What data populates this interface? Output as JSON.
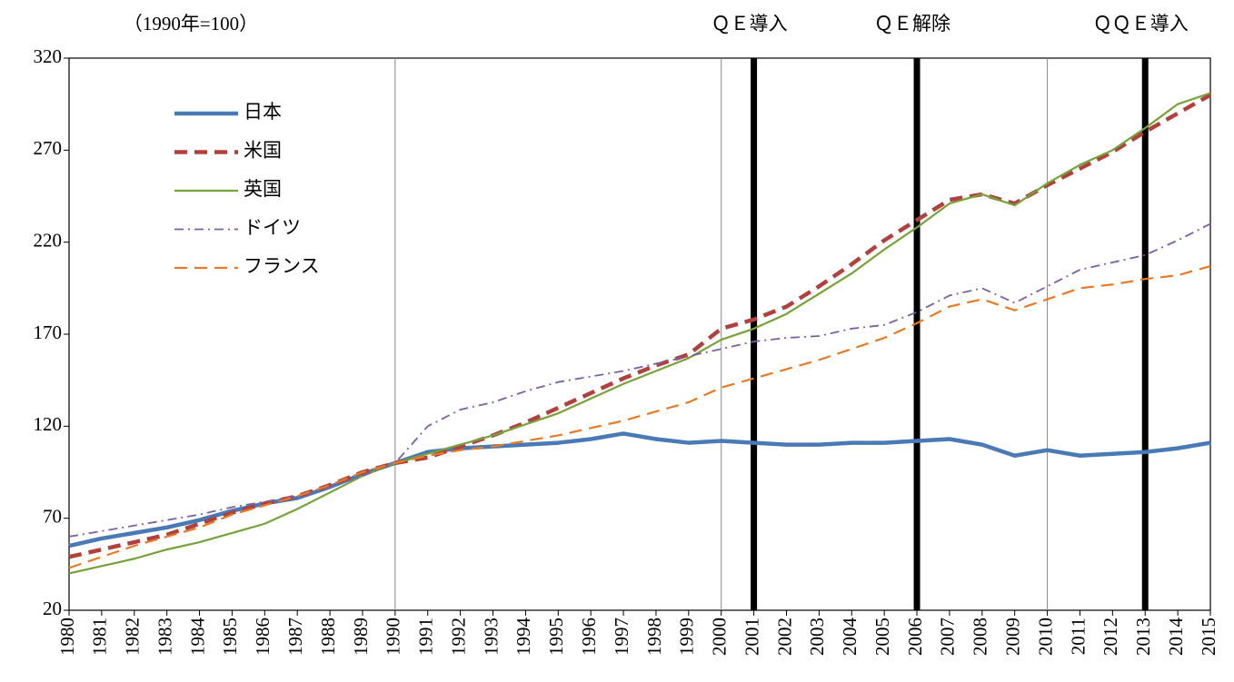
{
  "chart_data": {
    "type": "line",
    "y_label": "（1990年=100）",
    "x": [
      1980,
      1981,
      1982,
      1983,
      1984,
      1985,
      1986,
      1987,
      1988,
      1989,
      1990,
      1991,
      1992,
      1993,
      1994,
      1995,
      1996,
      1997,
      1998,
      1999,
      2000,
      2001,
      2002,
      2003,
      2004,
      2005,
      2006,
      2007,
      2008,
      2009,
      2010,
      2011,
      2012,
      2013,
      2014,
      2015
    ],
    "xlim": [
      1980,
      2015
    ],
    "ylim": [
      20,
      320
    ],
    "yticks": [
      20,
      70,
      120,
      170,
      220,
      270,
      320
    ],
    "x_gridlines": [
      1990,
      2000,
      2010
    ],
    "events": [
      {
        "year": 2001,
        "label": "ＱＥ導入"
      },
      {
        "year": 2006,
        "label": "ＱＥ解除"
      },
      {
        "year": 2013,
        "label": "ＱＱＥ導入"
      }
    ],
    "legend": "upper left",
    "series": [
      {
        "name": "日本",
        "color": "#4a7ab5",
        "linestyle": "solid",
        "linewidth": 4.5,
        "values": [
          55,
          59,
          62,
          65,
          69,
          74,
          78,
          81,
          87,
          94,
          100,
          106,
          108,
          109,
          110,
          111,
          113,
          116,
          113,
          111,
          112,
          111,
          110,
          110,
          111,
          111,
          112,
          113,
          110,
          104,
          107,
          104,
          105,
          106,
          108,
          111
        ]
      },
      {
        "name": "米国",
        "color": "#b0413e",
        "linestyle": "dashed",
        "linewidth": 4.5,
        "values": [
          49,
          53,
          57,
          61,
          67,
          73,
          78,
          82,
          88,
          95,
          100,
          103,
          109,
          115,
          122,
          130,
          138,
          146,
          153,
          159,
          173,
          178,
          185,
          196,
          208,
          221,
          232,
          243,
          246,
          241,
          251,
          260,
          269,
          280,
          290,
          300
        ]
      },
      {
        "name": "英国",
        "color": "#77a13a",
        "linestyle": "solid",
        "linewidth": 2.2,
        "values": [
          40,
          44,
          48,
          53,
          57,
          62,
          67,
          75,
          84,
          93,
          100,
          105,
          110,
          115,
          121,
          127,
          135,
          143,
          150,
          157,
          167,
          173,
          181,
          192,
          203,
          216,
          228,
          241,
          246,
          240,
          252,
          262,
          270,
          282,
          295,
          301
        ]
      },
      {
        "name": "ドイツ",
        "color": "#7b60a0",
        "linestyle": "dashdot",
        "linewidth": 1.8,
        "values": [
          60,
          63,
          66,
          69,
          72,
          76,
          79,
          82,
          87,
          93,
          100,
          120,
          129,
          133,
          139,
          144,
          147,
          150,
          154,
          158,
          162,
          166,
          168,
          169,
          173,
          175,
          182,
          191,
          195,
          187,
          196,
          205,
          209,
          213,
          221,
          230
        ]
      },
      {
        "name": "フランス",
        "color": "#e87a26",
        "linestyle": "dashed",
        "linewidth": 2.2,
        "values": [
          43,
          49,
          55,
          60,
          65,
          72,
          77,
          82,
          88,
          95,
          100,
          104,
          107,
          109,
          112,
          115,
          119,
          123,
          128,
          133,
          141,
          146,
          151,
          156,
          162,
          168,
          176,
          185,
          189,
          183,
          189,
          195,
          197,
          200,
          202,
          207
        ]
      }
    ]
  }
}
